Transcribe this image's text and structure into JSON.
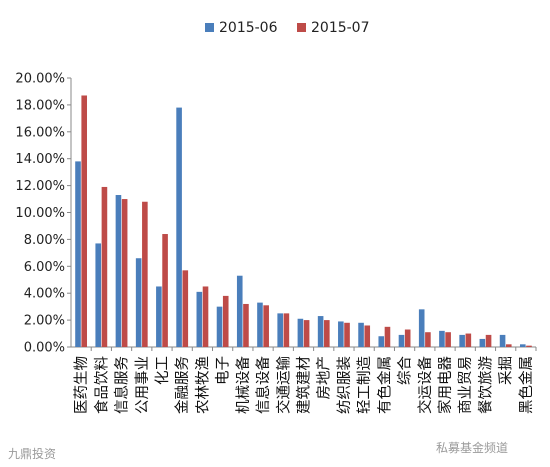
{
  "chart_data": {
    "type": "bar",
    "title": "",
    "xlabel": "",
    "ylabel": "",
    "ylim": [
      0,
      0.2
    ],
    "y_tick_labels": [
      "0.00%",
      "2.00%",
      "4.00%",
      "6.00%",
      "8.00%",
      "10.00%",
      "12.00%",
      "14.00%",
      "16.00%",
      "18.00%",
      "20.00%"
    ],
    "grid": false,
    "legend_position": "top",
    "categories": [
      "医药生物",
      "食品饮料",
      "信息服务",
      "公用事业",
      "化工",
      "金融服务",
      "农林牧渔",
      "电子",
      "机械设备",
      "信息设备",
      "交通运输",
      "建筑建材",
      "房地产",
      "纺织服装",
      "轻工制造",
      "有色金属",
      "综合",
      "交运设备",
      "家用电器",
      "商业贸易",
      "餐饮旅游",
      "采掘",
      "黑色金属"
    ],
    "series": [
      {
        "name": "2015-06",
        "color": "#4a7ebb",
        "values": [
          0.138,
          0.077,
          0.113,
          0.066,
          0.045,
          0.178,
          0.041,
          0.03,
          0.053,
          0.033,
          0.025,
          0.021,
          0.023,
          0.019,
          0.018,
          0.008,
          0.009,
          0.028,
          0.012,
          0.009,
          0.006,
          0.009,
          0.002
        ]
      },
      {
        "name": "2015-07",
        "color": "#be4b48",
        "values": [
          0.187,
          0.119,
          0.11,
          0.108,
          0.084,
          0.057,
          0.045,
          0.038,
          0.032,
          0.031,
          0.025,
          0.02,
          0.02,
          0.018,
          0.016,
          0.015,
          0.013,
          0.011,
          0.011,
          0.01,
          0.009,
          0.002,
          0.001
        ]
      }
    ]
  },
  "watermarks": {
    "left": "九鼎投资",
    "right": "私募基金频道"
  }
}
